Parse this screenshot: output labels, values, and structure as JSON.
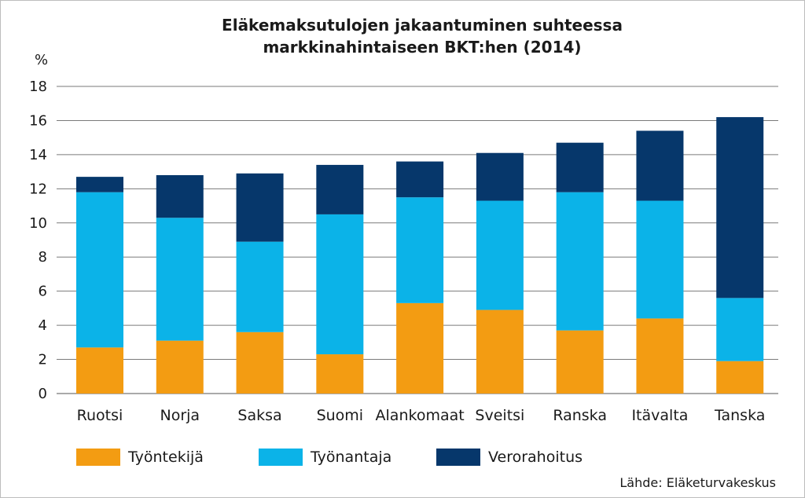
{
  "chart_data": {
    "type": "bar",
    "stacked": true,
    "title_lines": [
      "Eläkemaksutulojen jakaantuminen suhteessa",
      "markkinahintaiseen BKT:hen (2014)"
    ],
    "ylabel": "%",
    "ylim": [
      0,
      18
    ],
    "yticks": [
      0,
      2,
      4,
      6,
      8,
      10,
      12,
      14,
      16,
      18
    ],
    "grid": true,
    "legend_position": "bottom",
    "categories": [
      "Ruotsi",
      "Norja",
      "Saksa",
      "Suomi",
      "Alankomaat",
      "Sveitsi",
      "Ranska",
      "Itävalta",
      "Tanska"
    ],
    "series": [
      {
        "name": "Työntekijä",
        "color": "#f39c12",
        "values": [
          2.7,
          3.1,
          3.6,
          2.3,
          5.3,
          4.9,
          3.7,
          4.4,
          1.9
        ]
      },
      {
        "name": "Työnantaja",
        "color": "#0bb3e8",
        "values": [
          9.1,
          7.2,
          5.3,
          8.2,
          6.2,
          6.4,
          8.1,
          6.9,
          3.7
        ]
      },
      {
        "name": "Verorahoitus",
        "color": "#06376b",
        "values": [
          0.9,
          2.5,
          4.0,
          2.9,
          2.1,
          2.8,
          2.9,
          4.1,
          10.6
        ]
      }
    ],
    "source": "Lähde: Eläketurvakeskus"
  }
}
